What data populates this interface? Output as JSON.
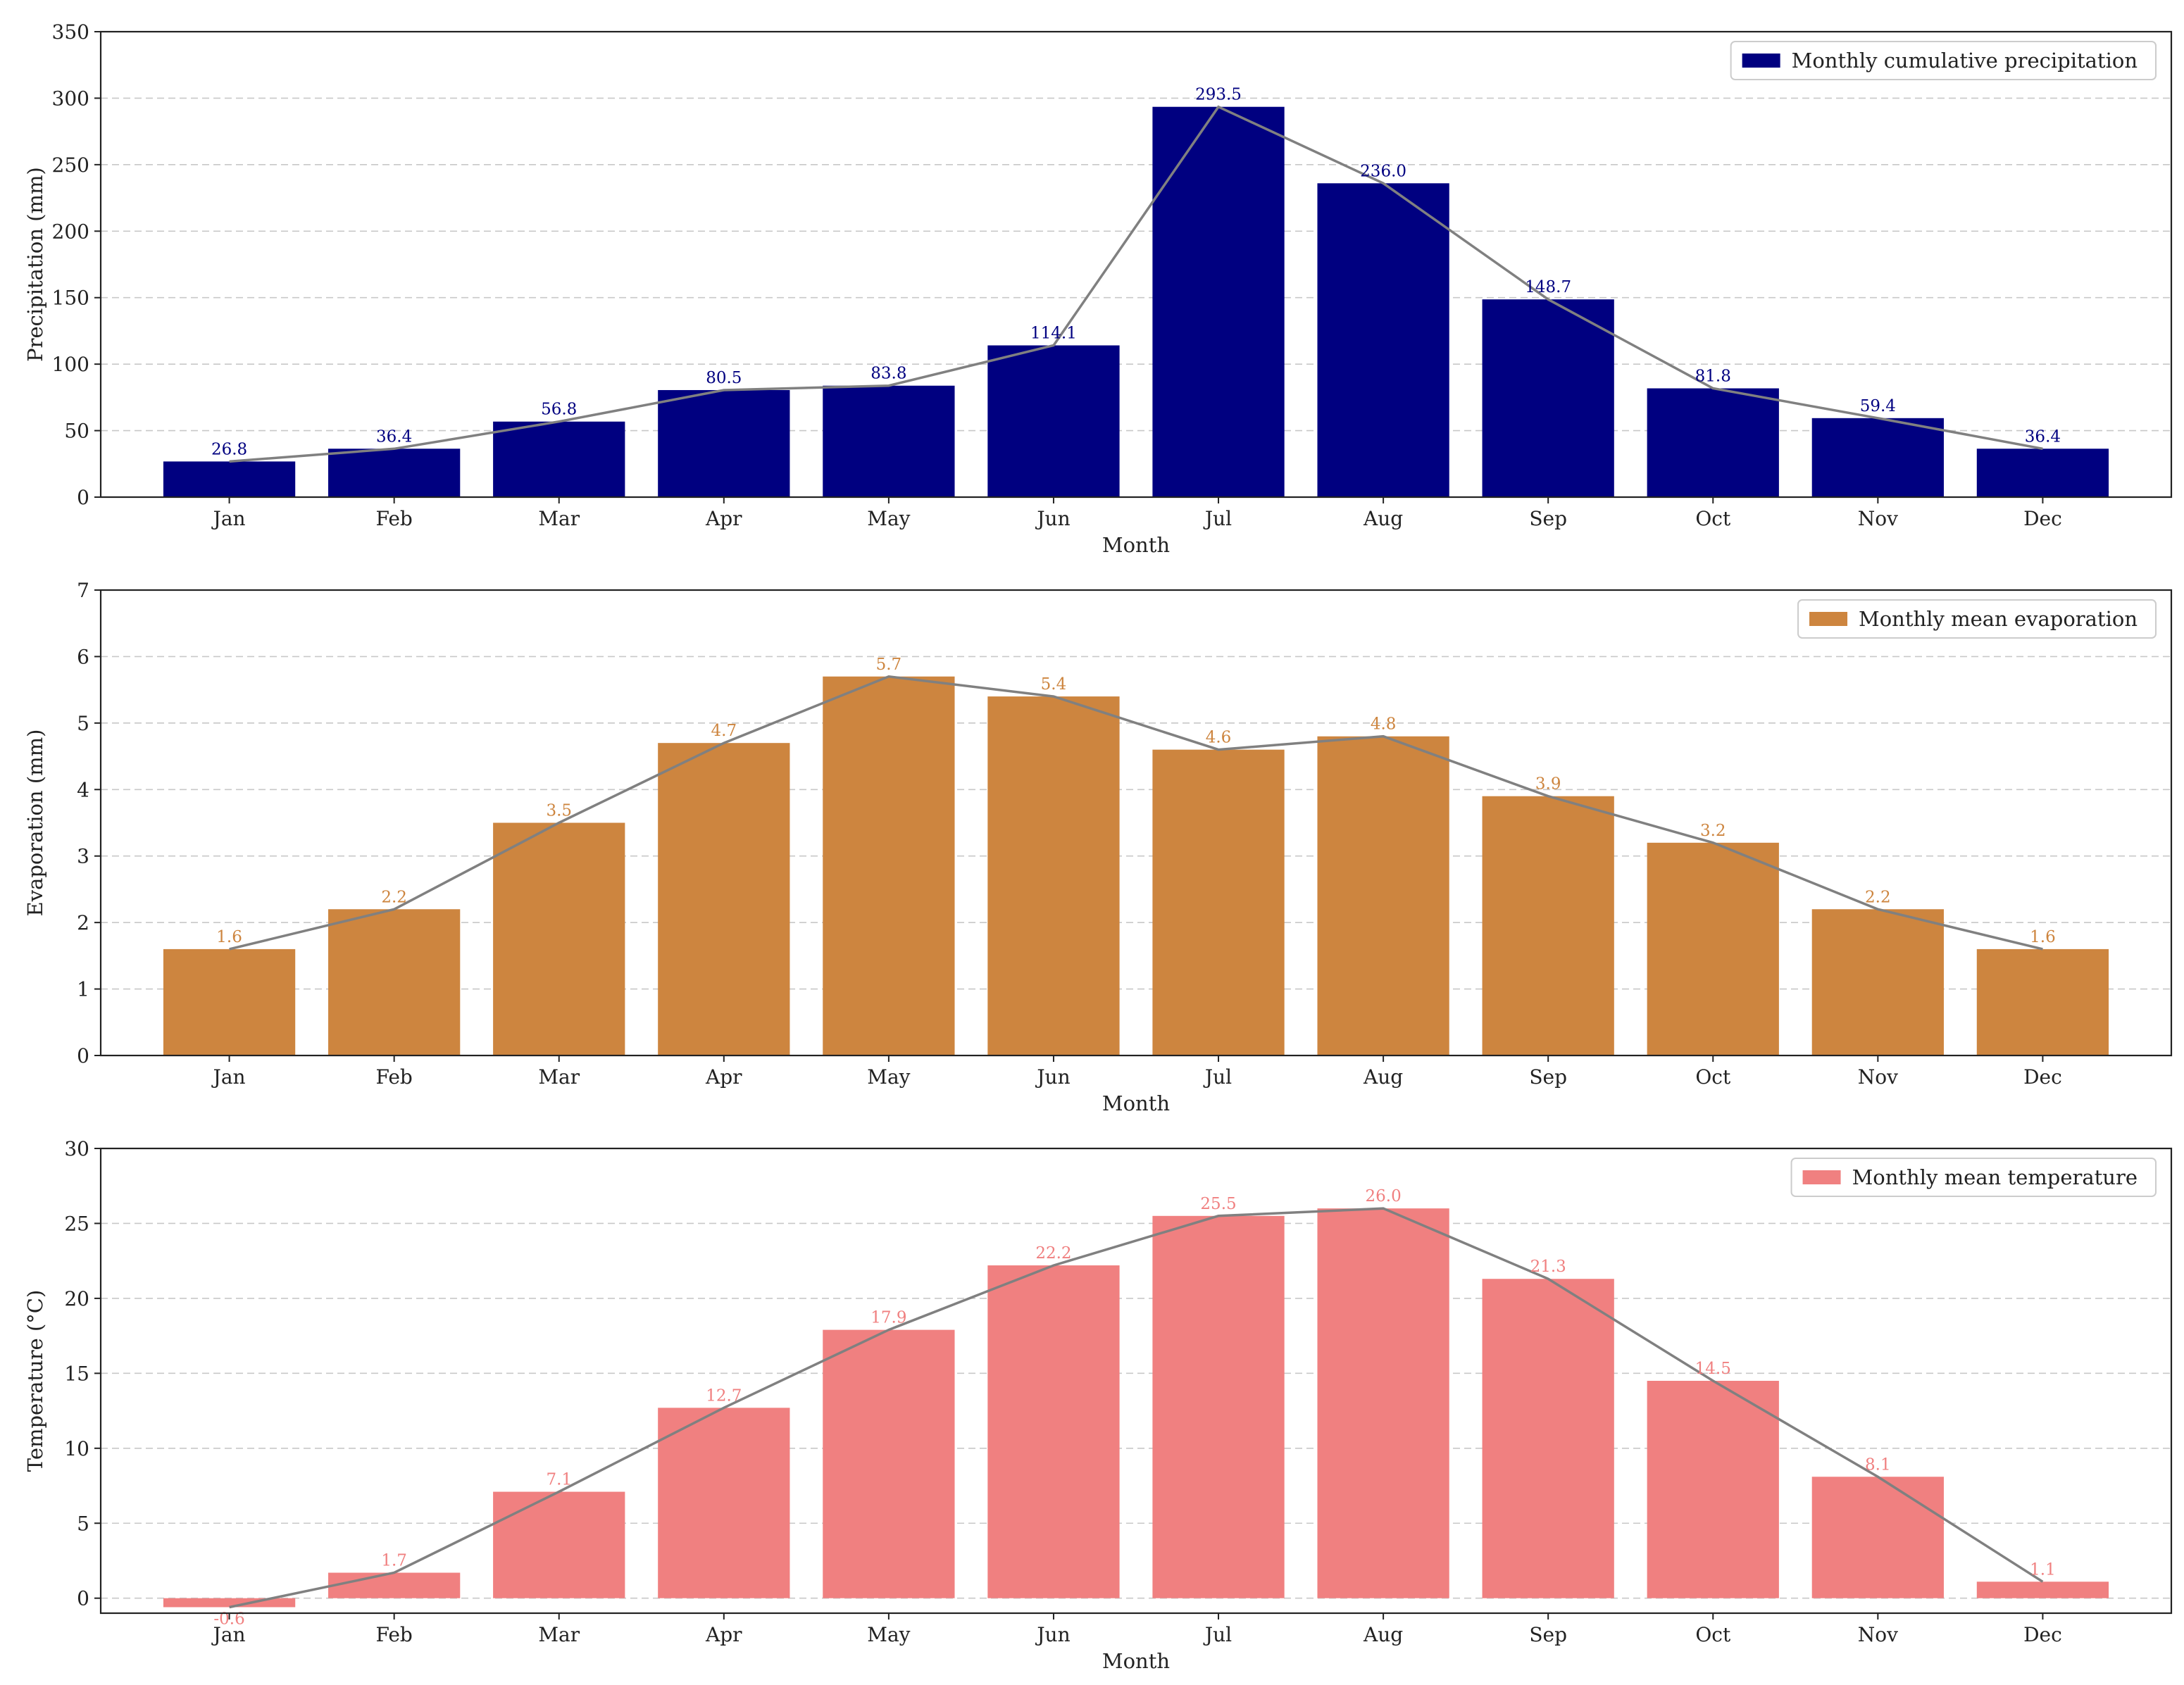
{
  "chart_data": [
    {
      "type": "bar",
      "categories": [
        "Jan",
        "Feb",
        "Mar",
        "Apr",
        "May",
        "Jun",
        "Jul",
        "Aug",
        "Sep",
        "Oct",
        "Nov",
        "Dec"
      ],
      "series": [
        {
          "name": "Monthly cumulative precipitation",
          "values": [
            26.8,
            36.4,
            56.8,
            80.5,
            83.8,
            114.1,
            293.5,
            236.0,
            148.7,
            81.8,
            59.4,
            36.4
          ]
        }
      ],
      "value_labels": [
        "26.8",
        "36.4",
        "56.8",
        "80.5",
        "83.8",
        "114.1",
        "293.5",
        "236.0",
        "148.7",
        "81.8",
        "59.4",
        "36.4"
      ],
      "xlabel": "Month",
      "ylabel": "Precipitation (mm)",
      "ylim": [
        0,
        350
      ],
      "yticks": [
        0,
        50,
        100,
        150,
        200,
        250,
        300,
        350
      ],
      "color": "#000080",
      "label_color": "#000080",
      "line_color": "#808080",
      "grid": "y-dashed",
      "legend": "top-right"
    },
    {
      "type": "bar",
      "categories": [
        "Jan",
        "Feb",
        "Mar",
        "Apr",
        "May",
        "Jun",
        "Jul",
        "Aug",
        "Sep",
        "Oct",
        "Nov",
        "Dec"
      ],
      "series": [
        {
          "name": "Monthly mean evaporation",
          "values": [
            1.6,
            2.2,
            3.5,
            4.7,
            5.7,
            5.4,
            4.6,
            4.8,
            3.9,
            3.2,
            2.2,
            1.6
          ]
        }
      ],
      "value_labels": [
        "1.6",
        "2.2",
        "3.5",
        "4.7",
        "5.7",
        "5.4",
        "4.6",
        "4.8",
        "3.9",
        "3.2",
        "2.2",
        "1.6"
      ],
      "xlabel": "Month",
      "ylabel": "Evaporation (mm)",
      "ylim": [
        0,
        7
      ],
      "yticks": [
        0,
        1,
        2,
        3,
        4,
        5,
        6,
        7
      ],
      "color": "#CD853F",
      "label_color": "#CD853F",
      "line_color": "#808080",
      "grid": "y-dashed",
      "legend": "top-right"
    },
    {
      "type": "bar",
      "categories": [
        "Jan",
        "Feb",
        "Mar",
        "Apr",
        "May",
        "Jun",
        "Jul",
        "Aug",
        "Sep",
        "Oct",
        "Nov",
        "Dec"
      ],
      "series": [
        {
          "name": "Monthly mean temperature",
          "values": [
            -0.6,
            1.7,
            7.1,
            12.7,
            17.9,
            22.2,
            25.5,
            26.0,
            21.3,
            14.5,
            8.1,
            1.1
          ]
        }
      ],
      "value_labels": [
        "-0.6",
        "1.7",
        "7.1",
        "12.7",
        "17.9",
        "22.2",
        "25.5",
        "26.0",
        "21.3",
        "14.5",
        "8.1",
        "1.1"
      ],
      "xlabel": "Month",
      "ylabel": "Temperature (°C)",
      "ylim": [
        -1,
        30
      ],
      "yticks": [
        0,
        5,
        10,
        15,
        20,
        25,
        30
      ],
      "color": "#F08080",
      "label_color": "#F08080",
      "line_color": "#808080",
      "grid": "y-dashed",
      "legend": "top-right"
    }
  ]
}
